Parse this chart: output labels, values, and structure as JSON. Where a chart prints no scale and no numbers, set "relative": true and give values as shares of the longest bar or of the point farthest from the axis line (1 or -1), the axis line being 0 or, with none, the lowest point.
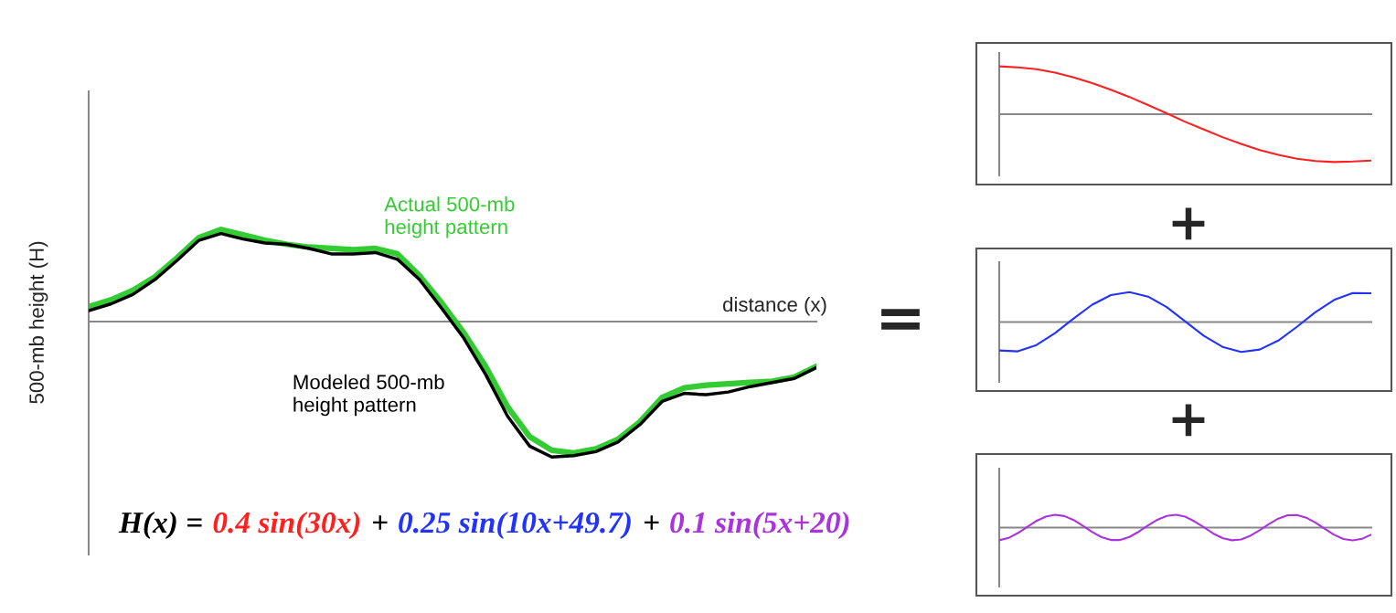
{
  "chart_data": [
    {
      "type": "line",
      "relative": true,
      "xlabel": "distance (x)",
      "ylabel": "500-mb height (H)",
      "categories": [
        null,
        null,
        null,
        null,
        null,
        null,
        null,
        null,
        null,
        null,
        null,
        null,
        null,
        null,
        null,
        null,
        null,
        null,
        null,
        null,
        null,
        null,
        null,
        null,
        null,
        null,
        null,
        null,
        null,
        null,
        null,
        null,
        null,
        null
      ],
      "series": [
        {
          "name": "Actual 500-mb\nheight pattern",
          "color": "#33cc33",
          "values": [
            0.11,
            0.16,
            0.23,
            0.33,
            0.47,
            0.62,
            0.68,
            0.64,
            0.6,
            0.57,
            0.55,
            0.54,
            0.53,
            0.54,
            0.5,
            0.34,
            0.14,
            -0.08,
            -0.33,
            -0.63,
            -0.85,
            -0.95,
            -0.97,
            -0.94,
            -0.87,
            -0.74,
            -0.56,
            -0.49,
            -0.47,
            -0.46,
            -0.45,
            -0.44,
            -0.41,
            -0.33
          ]
        },
        {
          "name": "Modeled 500-mb\nheight pattern",
          "color": "#000000",
          "values": [
            0.08,
            0.13,
            0.2,
            0.31,
            0.45,
            0.6,
            0.65,
            0.61,
            0.58,
            0.57,
            0.54,
            0.5,
            0.5,
            0.51,
            0.46,
            0.31,
            0.1,
            -0.12,
            -0.39,
            -0.7,
            -0.92,
            -1,
            -0.99,
            -0.96,
            -0.89,
            -0.76,
            -0.59,
            -0.53,
            -0.54,
            -0.52,
            -0.48,
            -0.45,
            -0.42,
            -0.34
          ]
        }
      ],
      "annotations": [
        "H(x) =",
        "0.4 sin(30x)",
        "+",
        "0.25 sin(10x+49.7)",
        "+",
        "0.1 sin(5x+20)",
        "="
      ]
    },
    {
      "type": "line",
      "relative": true,
      "categories": [
        null,
        null,
        null,
        null,
        null,
        null,
        null,
        null,
        null,
        null,
        null,
        null,
        null,
        null,
        null,
        null,
        null,
        null,
        null,
        null,
        null
      ],
      "series": [
        {
          "color": "#ff2020",
          "values": [
            1,
            0.98,
            0.94,
            0.87,
            0.77,
            0.65,
            0.51,
            0.36,
            0.19,
            0.02,
            -0.16,
            -0.32,
            -0.48,
            -0.62,
            -0.75,
            -0.85,
            -0.93,
            -0.98,
            -1,
            -0.99,
            -0.97
          ]
        }
      ]
    },
    {
      "type": "line",
      "relative": true,
      "categories": [
        null,
        null,
        null,
        null,
        null,
        null,
        null,
        null,
        null,
        null,
        null,
        null,
        null,
        null,
        null,
        null,
        null,
        null,
        null,
        null,
        null
      ],
      "series": [
        {
          "color": "#2233ff",
          "values": [
            -0.95,
            -0.98,
            -0.77,
            -0.37,
            0.12,
            0.58,
            0.9,
            1,
            0.85,
            0.5,
            0.02,
            -0.46,
            -0.83,
            -1,
            -0.92,
            -0.62,
            -0.16,
            0.33,
            0.74,
            0.97,
            0.96
          ]
        }
      ],
      "annotations": [
        "+"
      ]
    },
    {
      "type": "line",
      "relative": true,
      "categories": [
        null,
        null,
        null,
        null,
        null,
        null,
        null,
        null,
        null,
        null,
        null,
        null,
        null,
        null,
        null,
        null,
        null,
        null,
        null,
        null,
        null,
        null,
        null,
        null,
        null,
        null,
        null,
        null,
        null,
        null,
        null,
        null,
        null,
        null,
        null,
        null,
        null,
        null,
        null,
        null,
        null
      ],
      "series": [
        {
          "color": "#aa33dd",
          "values": [
            -0.99,
            -0.81,
            -0.43,
            0.05,
            0.52,
            0.86,
            1,
            0.9,
            0.59,
            0.14,
            -0.35,
            -0.75,
            -0.97,
            -0.97,
            -0.73,
            -0.32,
            0.17,
            0.61,
            0.91,
            1,
            0.85,
            0.48,
            0.02,
            -0.46,
            -0.82,
            -0.99,
            -0.93,
            -0.64,
            -0.2,
            0.28,
            0.7,
            0.96,
            0.98,
            0.77,
            0.38,
            -0.1,
            -0.56,
            -0.89,
            -1,
            -0.88,
            -0.55
          ]
        }
      ],
      "annotations": [
        "+"
      ]
    }
  ]
}
